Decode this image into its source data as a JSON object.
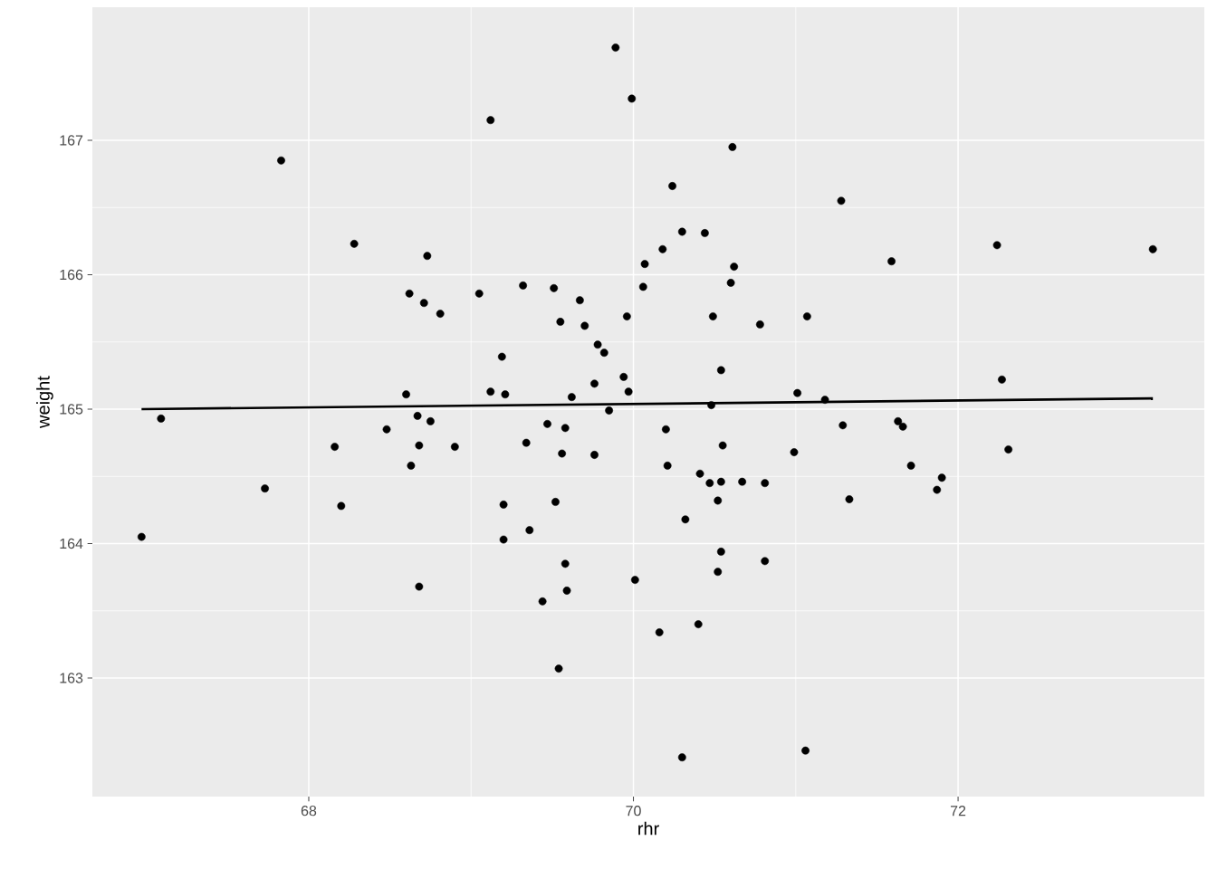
{
  "chart_data": {
    "type": "scatter",
    "xlabel": "rhr",
    "ylabel": "weight",
    "xlim": [
      66.667,
      73.517
    ],
    "ylim": [
      162.118,
      167.99
    ],
    "xticks": [
      68,
      70,
      72
    ],
    "yticks": [
      163,
      164,
      165,
      166,
      167
    ],
    "grid": true,
    "marker": "circle",
    "series": [
      {
        "color": "#000000",
        "x": [
          66.97,
          67.09,
          67.83,
          67.73,
          68.16,
          68.2,
          68.28,
          68.48,
          68.6,
          68.62,
          68.63,
          68.67,
          68.68,
          68.68,
          68.71,
          68.73,
          68.75,
          68.81,
          68.9,
          69.05,
          69.12,
          69.12,
          69.19,
          69.21,
          69.2,
          69.2,
          69.32,
          69.34,
          69.36,
          69.44,
          69.47,
          69.51,
          69.52,
          69.55,
          69.54,
          69.56,
          69.58,
          69.58,
          69.59,
          69.62,
          69.67,
          69.7,
          69.76,
          69.76,
          69.78,
          69.82,
          69.85,
          69.89,
          69.94,
          69.96,
          69.97,
          69.99,
          70.01,
          70.07,
          70.06,
          70.16,
          70.18,
          70.2,
          70.21,
          70.24,
          70.3,
          70.3,
          70.32,
          70.4,
          70.41,
          70.44,
          70.47,
          70.48,
          70.49,
          70.52,
          70.52,
          70.54,
          70.54,
          70.54,
          70.55,
          70.61,
          70.6,
          70.62,
          70.67,
          70.78,
          70.81,
          70.81,
          70.99,
          71.01,
          71.06,
          71.07,
          71.18,
          71.28,
          71.29,
          71.33,
          71.59,
          71.63,
          71.66,
          71.71,
          71.87,
          71.9,
          72.24,
          72.27,
          72.31,
          73.2
        ],
        "values": [
          164.05,
          164.93,
          166.85,
          164.41,
          164.72,
          164.28,
          166.23,
          164.85,
          165.11,
          165.86,
          164.58,
          164.95,
          164.73,
          163.68,
          165.79,
          166.14,
          164.91,
          165.71,
          164.72,
          165.86,
          167.15,
          165.13,
          165.39,
          165.11,
          164.29,
          164.03,
          165.92,
          164.75,
          164.1,
          163.57,
          164.89,
          165.9,
          164.31,
          165.65,
          163.07,
          164.67,
          164.86,
          163.85,
          163.65,
          165.09,
          165.81,
          165.62,
          165.19,
          164.66,
          165.48,
          165.42,
          164.99,
          167.69,
          165.24,
          165.69,
          165.13,
          167.31,
          163.73,
          166.08,
          165.91,
          163.34,
          166.19,
          164.85,
          164.58,
          166.66,
          166.32,
          162.41,
          164.18,
          163.4,
          164.52,
          166.31,
          164.45,
          165.03,
          165.69,
          164.32,
          163.79,
          165.29,
          164.46,
          163.94,
          164.73,
          166.95,
          165.94,
          166.06,
          164.46,
          165.63,
          164.45,
          163.87,
          164.68,
          165.12,
          162.46,
          165.69,
          165.07,
          166.55,
          164.88,
          164.33,
          166.1,
          164.91,
          164.87,
          164.58,
          164.4,
          164.49,
          166.22,
          165.22,
          164.7,
          166.19
        ]
      },
      {
        "type": "line",
        "color": "#000000",
        "marker": "none",
        "x": [
          66.97,
          73.2
        ],
        "values": [
          165.0,
          165.08
        ]
      }
    ]
  }
}
